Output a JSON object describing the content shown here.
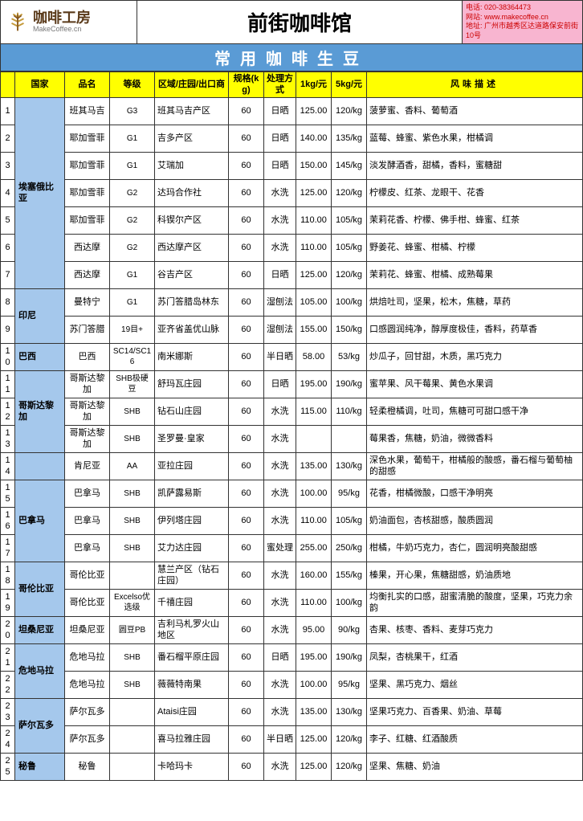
{
  "header": {
    "logo_cn": "咖啡工房",
    "logo_en": "MakeCoffee.cn",
    "title": "前街咖啡馆",
    "contact_tel": "电话: 020-38364473",
    "contact_web": "网站: www.makecoffee.cn",
    "contact_addr": "地址: 广州市越秀区达道路保安前街10号"
  },
  "section_title": "常用咖啡生豆",
  "columns": [
    "",
    "国家",
    "品名",
    "等级",
    "区域/庄园/出口商",
    "规格(kg)",
    "处理方式",
    "1kg/元",
    "5kg/元",
    "风味描述"
  ],
  "colors": {
    "header_bg": "#ffff00",
    "section_bg": "#5a9bd5",
    "country_bg": "#a5c8ec",
    "contact_bg": "#f8b5d0",
    "contact_text": "#c00"
  },
  "countries": [
    {
      "name": "埃塞俄比亚",
      "rows": [
        {
          "idx": 1,
          "name": "班其马吉",
          "grade": "G3",
          "region": "班其马吉产区",
          "spec": "60",
          "process": "日晒",
          "p1": "125.00",
          "p5": "120/kg",
          "flavor": "菠萝蜜、香料、葡萄酒"
        },
        {
          "idx": 2,
          "name": "耶加雪菲",
          "grade": "G1",
          "region": "吉多产区",
          "spec": "60",
          "process": "日晒",
          "p1": "140.00",
          "p5": "135/kg",
          "flavor": "蓝莓、蜂蜜、紫色水果，柑橘调"
        },
        {
          "idx": 3,
          "name": "耶加雪菲",
          "grade": "G1",
          "region": "艾瑞加",
          "spec": "60",
          "process": "日晒",
          "p1": "150.00",
          "p5": "145/kg",
          "flavor": "淡发酵酒香，甜橘，香料，蜜糖甜"
        },
        {
          "idx": 4,
          "name": "耶加雪菲",
          "grade": "G2",
          "region": "达玛合作社",
          "spec": "60",
          "process": "水洗",
          "p1": "125.00",
          "p5": "120/kg",
          "flavor": "柠檬皮、红茶、龙眼干、花香"
        },
        {
          "idx": 5,
          "name": "耶加雪菲",
          "grade": "G2",
          "region": "科锲尔产区",
          "spec": "60",
          "process": "水洗",
          "p1": "110.00",
          "p5": "105/kg",
          "flavor": "茉莉花香、柠檬、佛手柑、蜂蜜、红茶"
        },
        {
          "idx": 6,
          "name": "西达摩",
          "grade": "G2",
          "region": "西达摩产区",
          "spec": "60",
          "process": "水洗",
          "p1": "110.00",
          "p5": "105/kg",
          "flavor": "野姜花、蜂蜜、柑橘、柠檬"
        },
        {
          "idx": 7,
          "name": "西达摩",
          "grade": "G1",
          "region": "谷吉产区",
          "spec": "60",
          "process": "日晒",
          "p1": "125.00",
          "p5": "120/kg",
          "flavor": "茉莉花、蜂蜜、柑橘、成熟莓果"
        }
      ]
    },
    {
      "name": "印尼",
      "rows": [
        {
          "idx": 8,
          "name": "曼特宁",
          "grade": "G1",
          "region": "苏门答腊岛林东",
          "spec": "60",
          "process": "湿刨法",
          "p1": "105.00",
          "p5": "100/kg",
          "flavor": "烘焙吐司，坚果，松木，焦糖，草药"
        },
        {
          "idx": 9,
          "name": "苏门答腊",
          "grade": "19目+",
          "region": "亚齐省盖优山脉",
          "spec": "60",
          "process": "湿刨法",
          "p1": "155.00",
          "p5": "150/kg",
          "flavor": "口感圆润纯净，醇厚度极佳，香料，药草香"
        }
      ]
    },
    {
      "name": "巴西",
      "rows": [
        {
          "idx": 10,
          "name": "巴西",
          "grade": "SC14/SC16",
          "region": "南米娜斯",
          "spec": "60",
          "process": "半日晒",
          "p1": "58.00",
          "p5": "53/kg",
          "flavor": "炒瓜子，回甘甜，木质，黑巧克力"
        }
      ]
    },
    {
      "name": "哥斯达黎加",
      "rows": [
        {
          "idx": 11,
          "name": "哥斯达黎加",
          "grade": "SHB极硬豆",
          "region": "舒玛瓦庄园",
          "spec": "60",
          "process": "日晒",
          "p1": "195.00",
          "p5": "190/kg",
          "flavor": "蜜苹果、风干莓果、黄色水果调"
        },
        {
          "idx": 12,
          "name": "哥斯达黎加",
          "grade": "SHB",
          "region": "钻石山庄园",
          "spec": "60",
          "process": "水洗",
          "p1": "115.00",
          "p5": "110/kg",
          "flavor": "轻柔橙橘调，吐司，焦糖可可甜口感干净"
        },
        {
          "idx": 13,
          "name": "哥斯达黎加",
          "grade": "SHB",
          "region": "圣罗曼·皇家",
          "spec": "60",
          "process": "水洗",
          "p1": "",
          "p5": "",
          "flavor": "莓果香，焦糖，奶油，微微香料"
        }
      ]
    },
    {
      "name": "",
      "rows": [
        {
          "idx": 14,
          "name": "肯尼亚",
          "grade": "AA",
          "region": "亚拉庄园",
          "spec": "60",
          "process": "水洗",
          "p1": "135.00",
          "p5": "130/kg",
          "flavor": "深色水果，葡萄干，柑橘般的酸感，番石榴与葡萄柚的甜感"
        }
      ]
    },
    {
      "name": "巴拿马",
      "rows": [
        {
          "idx": 15,
          "name": "巴拿马",
          "grade": "SHB",
          "region": "凯萨露易斯",
          "spec": "60",
          "process": "水洗",
          "p1": "100.00",
          "p5": "95/kg",
          "flavor": "花香，柑橘微酸，口感干净明亮"
        },
        {
          "idx": 16,
          "name": "巴拿马",
          "grade": "SHB",
          "region": "伊列塔庄园",
          "spec": "60",
          "process": "水洗",
          "p1": "110.00",
          "p5": "105/kg",
          "flavor": "奶油面包，杏核甜感，酸质圆润"
        },
        {
          "idx": 17,
          "name": "巴拿马",
          "grade": "SHB",
          "region": "艾力达庄园",
          "spec": "60",
          "process": "蜜处理",
          "p1": "255.00",
          "p5": "250/kg",
          "flavor": "柑橘，牛奶巧克力，杏仁，圆润明亮酸甜感"
        }
      ]
    },
    {
      "name": "哥伦比亚",
      "rows": [
        {
          "idx": 18,
          "name": "哥伦比亚",
          "grade": "",
          "region": "慧兰产区（钻石庄园）",
          "spec": "60",
          "process": "水洗",
          "p1": "160.00",
          "p5": "155/kg",
          "flavor": "榛果，开心果，焦糖甜感，奶油质地"
        },
        {
          "idx": 19,
          "name": "哥伦比亚",
          "grade": "Excelso优选级",
          "region": "千禧庄园",
          "spec": "60",
          "process": "水洗",
          "p1": "110.00",
          "p5": "100/kg",
          "flavor": "均衡扎实的口感，甜蜜清脆的酸度，坚果，巧克力余韵"
        }
      ]
    },
    {
      "name": "坦桑尼亚",
      "rows": [
        {
          "idx": 20,
          "name": "坦桑尼亚",
          "grade": "圆豆PB",
          "region": "吉利马札罗火山地区",
          "spec": "60",
          "process": "水洗",
          "p1": "95.00",
          "p5": "90/kg",
          "flavor": "杏果、核枣、香料、麦芽巧克力"
        }
      ]
    },
    {
      "name": "危地马拉",
      "rows": [
        {
          "idx": 21,
          "name": "危地马拉",
          "grade": "SHB",
          "region": "番石榴平原庄园",
          "spec": "60",
          "process": "日晒",
          "p1": "195.00",
          "p5": "190/kg",
          "flavor": "凤梨，杏桃果干，红酒"
        },
        {
          "idx": 22,
          "name": "危地马拉",
          "grade": "SHB",
          "region": "薇薇特南果",
          "spec": "60",
          "process": "水洗",
          "p1": "100.00",
          "p5": "95/kg",
          "flavor": "坚果、黑巧克力、烟丝"
        }
      ]
    },
    {
      "name": "萨尔瓦多",
      "rows": [
        {
          "idx": 23,
          "name": "萨尔瓦多",
          "grade": "",
          "region": "Ataisi庄园",
          "spec": "60",
          "process": "水洗",
          "p1": "135.00",
          "p5": "130/kg",
          "flavor": "坚果巧克力、百香果、奶油、草莓"
        },
        {
          "idx": 24,
          "name": "萨尔瓦多",
          "grade": "",
          "region": "喜马拉雅庄园",
          "spec": "60",
          "process": "半日晒",
          "p1": "125.00",
          "p5": "120/kg",
          "flavor": "李子、红糖、红酒酸质"
        }
      ]
    },
    {
      "name": "秘鲁",
      "rows": [
        {
          "idx": 25,
          "name": "秘鲁",
          "grade": "",
          "region": "卡哈玛卡",
          "spec": "60",
          "process": "水洗",
          "p1": "125.00",
          "p5": "120/kg",
          "flavor": "坚果、焦糖、奶油"
        }
      ]
    }
  ]
}
